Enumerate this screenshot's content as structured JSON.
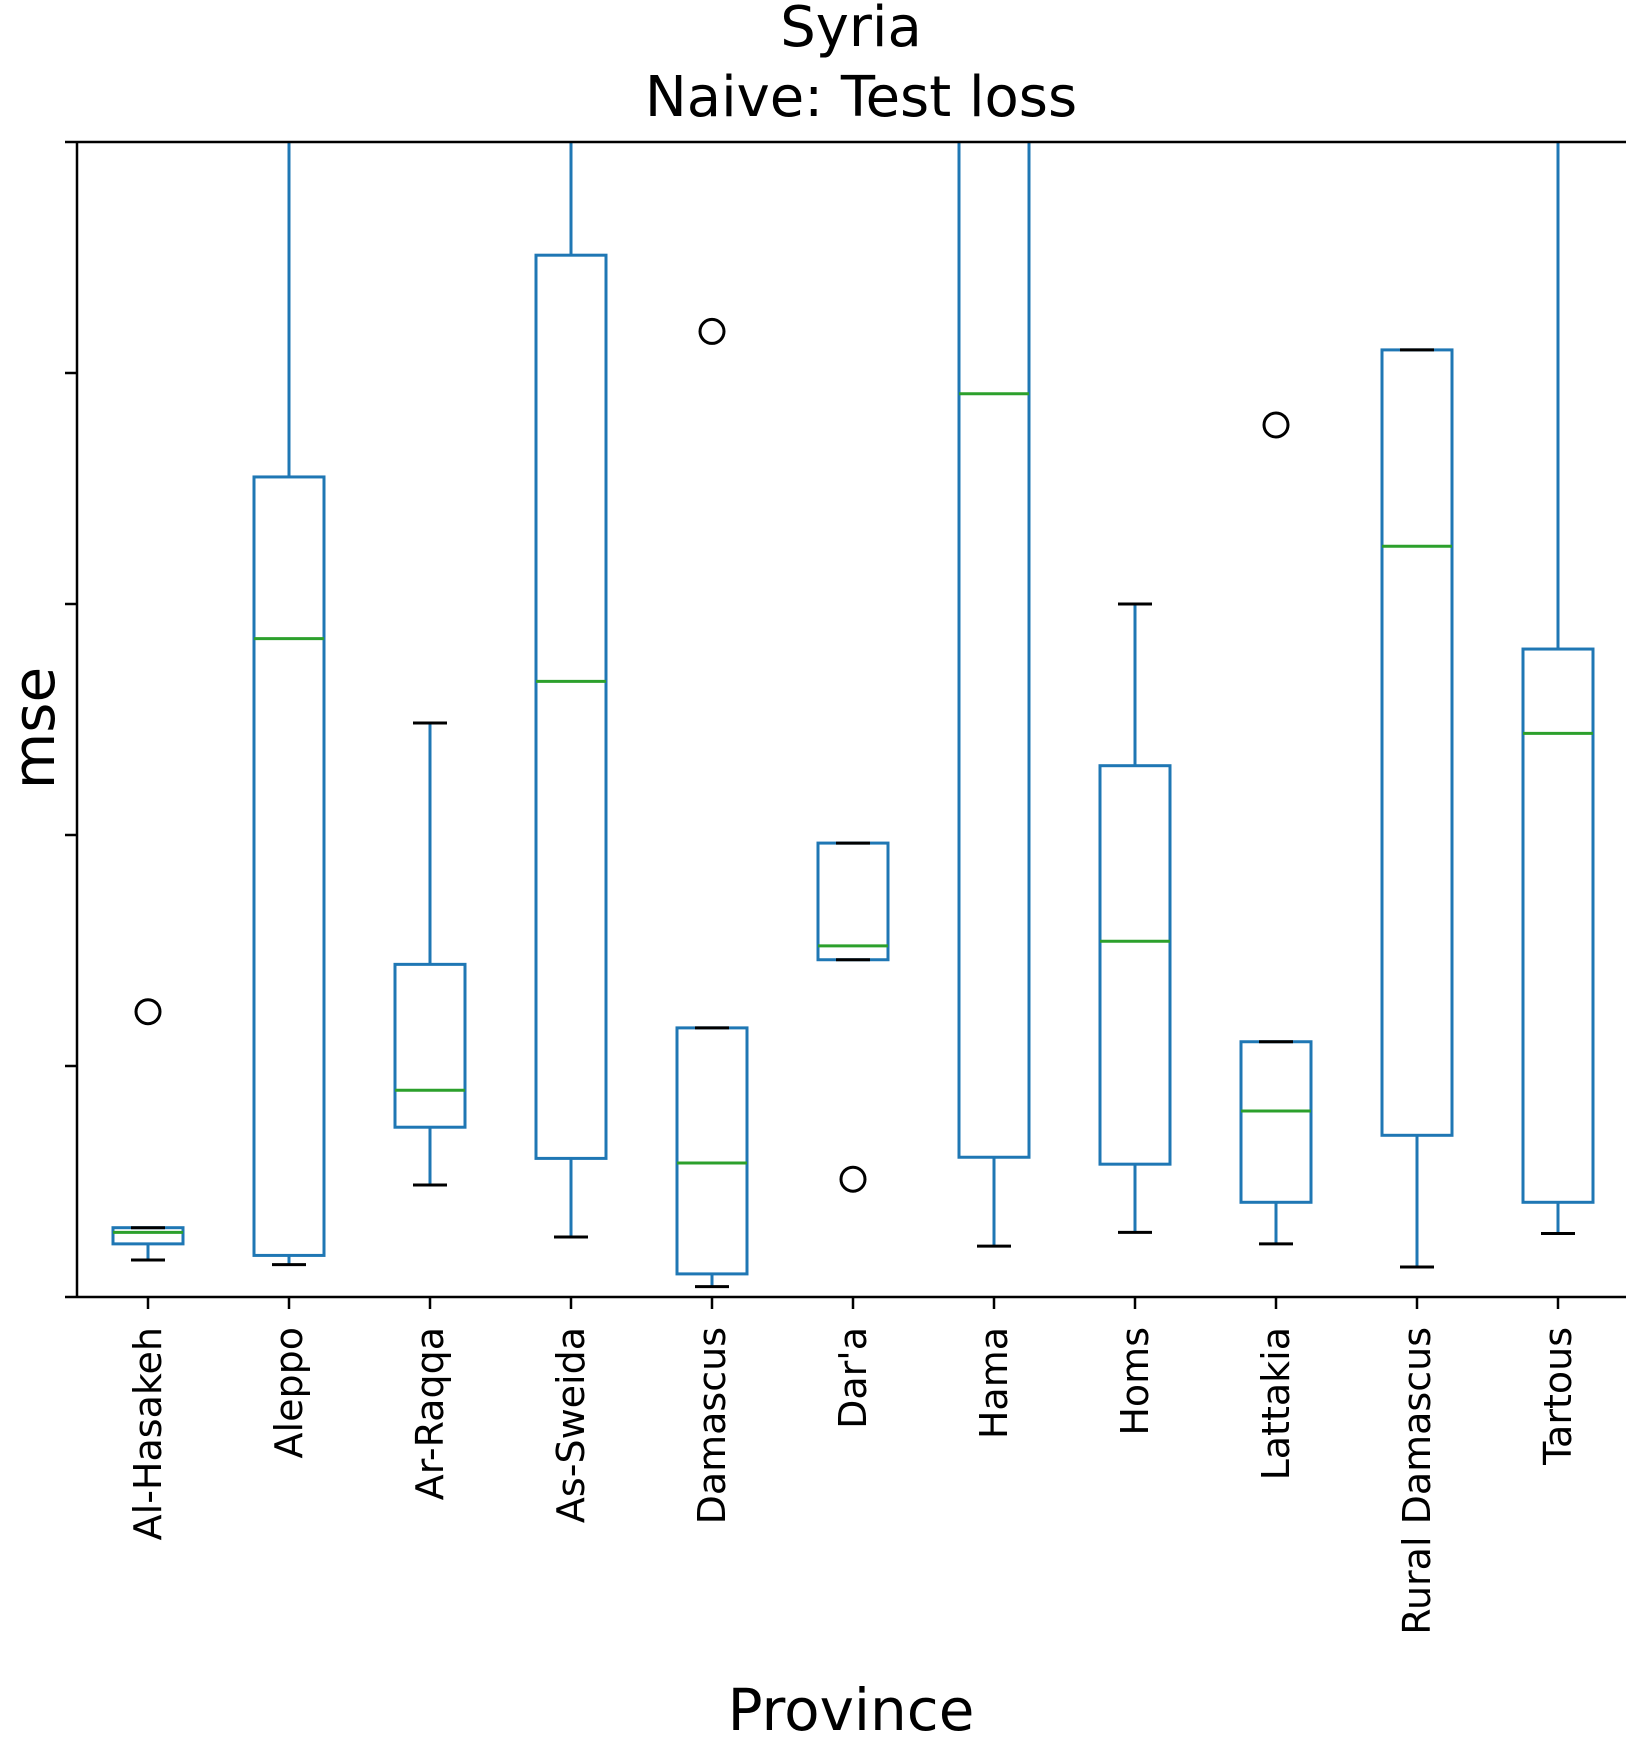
{
  "chart_data": {
    "type": "box",
    "title": "Syria",
    "subtitle": "Naive: Test loss",
    "xlabel": "Province",
    "ylabel": "mse",
    "ylim": [
      0,
      10
    ],
    "yticks": [
      0,
      2,
      4,
      6,
      8,
      10
    ],
    "ytick_labels_visible": false,
    "grid": false,
    "colors": {
      "box": "#1f77b4",
      "median": "#2ca02c",
      "whisker": "#1f77b4",
      "cap": "#000000",
      "outlier": "#000000"
    },
    "categories": [
      "Al-Hasakeh",
      "Aleppo",
      "Ar-Raqqa",
      "As-Sweida",
      "Damascus",
      "Dar'a",
      "Hama",
      "Homs",
      "Lattakia",
      "Rural Damascus",
      "Tartous"
    ],
    "boxes": [
      {
        "category": "Al-Hasakeh",
        "whislo": 0.32,
        "q1": 0.46,
        "median": 0.56,
        "q3": 0.6,
        "whishi": 0.6,
        "fliers": [
          2.47
        ]
      },
      {
        "category": "Aleppo",
        "whislo": 0.28,
        "q1": 0.36,
        "median": 5.7,
        "q3": 7.1,
        "whishi": 10.6,
        "fliers": []
      },
      {
        "category": "Ar-Raqqa",
        "whislo": 0.97,
        "q1": 1.47,
        "median": 1.79,
        "q3": 2.88,
        "whishi": 4.97,
        "fliers": []
      },
      {
        "category": "As-Sweida",
        "whislo": 0.52,
        "q1": 1.2,
        "median": 5.33,
        "q3": 9.02,
        "whishi": 10.6,
        "fliers": []
      },
      {
        "category": "Damascus",
        "whislo": 0.09,
        "q1": 0.2,
        "median": 1.16,
        "q3": 2.33,
        "whishi": 2.33,
        "fliers": [
          8.36
        ]
      },
      {
        "category": "Dar'a",
        "whislo": 2.92,
        "q1": 2.92,
        "median": 3.04,
        "q3": 3.93,
        "whishi": 3.93,
        "fliers": [
          1.02
        ]
      },
      {
        "category": "Hama",
        "whislo": 0.44,
        "q1": 1.21,
        "median": 7.82,
        "q3": 10.6,
        "whishi": 10.6,
        "fliers": []
      },
      {
        "category": "Homs",
        "whislo": 0.56,
        "q1": 1.15,
        "median": 3.08,
        "q3": 4.6,
        "whishi": 6.0,
        "fliers": []
      },
      {
        "category": "Lattakia",
        "whislo": 0.46,
        "q1": 0.82,
        "median": 1.61,
        "q3": 2.21,
        "whishi": 2.21,
        "fliers": [
          7.55
        ]
      },
      {
        "category": "Rural Damascus",
        "whislo": 0.26,
        "q1": 1.4,
        "median": 6.5,
        "q3": 8.2,
        "whishi": 8.2,
        "fliers": []
      },
      {
        "category": "Tartous",
        "whislo": 0.55,
        "q1": 0.82,
        "median": 4.88,
        "q3": 5.61,
        "whishi": 10.6,
        "fliers": []
      }
    ]
  }
}
